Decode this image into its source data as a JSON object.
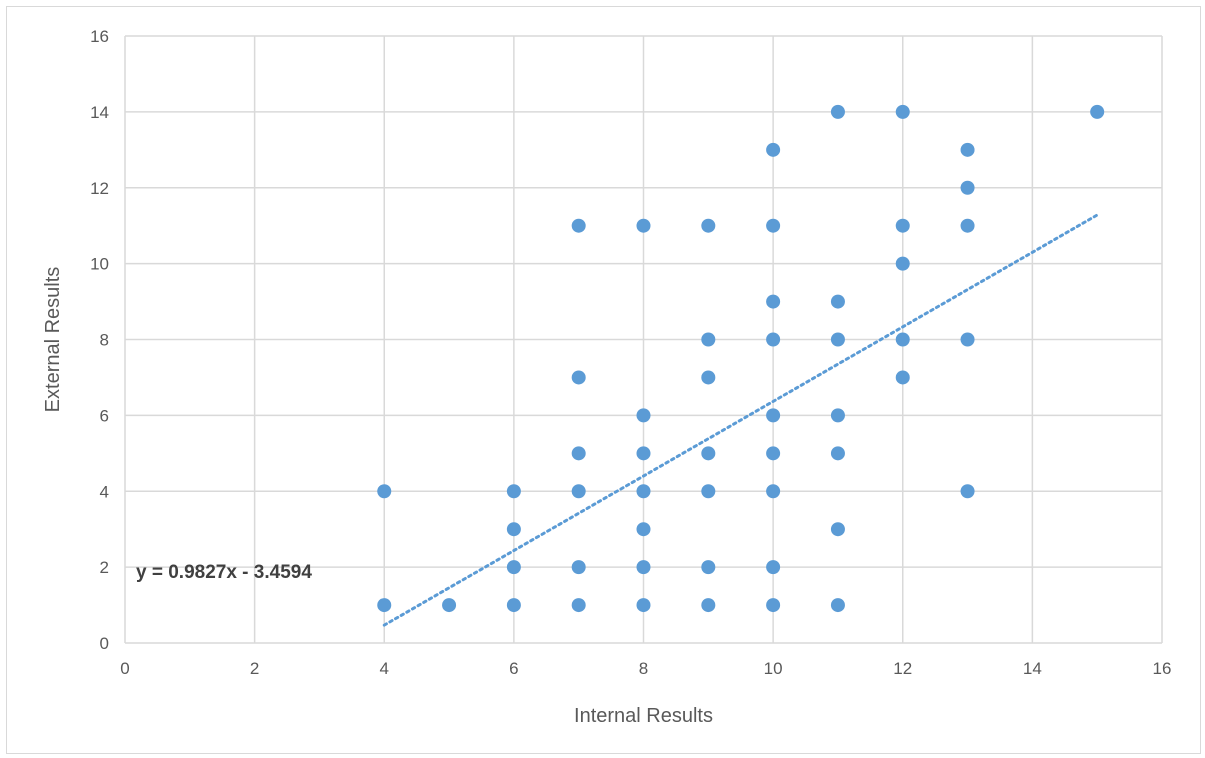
{
  "chart_data": {
    "type": "scatter",
    "title": "",
    "xlabel": "Internal Results",
    "ylabel": "External Results",
    "xlim": [
      0,
      16
    ],
    "ylim": [
      0,
      16
    ],
    "x_ticks": [
      "0",
      "2",
      "4",
      "6",
      "8",
      "10",
      "12",
      "14",
      "16"
    ],
    "y_ticks": [
      "0",
      "2",
      "4",
      "6",
      "8",
      "10",
      "12",
      "14",
      "16"
    ],
    "grid": true,
    "legend": "none",
    "series": [
      {
        "color": "#5b9bd5",
        "points": [
          [
            4,
            1
          ],
          [
            4,
            4
          ],
          [
            5,
            1
          ],
          [
            6,
            1
          ],
          [
            6,
            2
          ],
          [
            6,
            3
          ],
          [
            6,
            4
          ],
          [
            7,
            1
          ],
          [
            7,
            2
          ],
          [
            7,
            4
          ],
          [
            7,
            5
          ],
          [
            7,
            7
          ],
          [
            7,
            11
          ],
          [
            8,
            1
          ],
          [
            8,
            2
          ],
          [
            8,
            3
          ],
          [
            8,
            4
          ],
          [
            8,
            5
          ],
          [
            8,
            6
          ],
          [
            8,
            11
          ],
          [
            9,
            1
          ],
          [
            9,
            2
          ],
          [
            9,
            4
          ],
          [
            9,
            5
          ],
          [
            9,
            7
          ],
          [
            9,
            8
          ],
          [
            9,
            11
          ],
          [
            10,
            1
          ],
          [
            10,
            2
          ],
          [
            10,
            4
          ],
          [
            10,
            5
          ],
          [
            10,
            6
          ],
          [
            10,
            8
          ],
          [
            10,
            9
          ],
          [
            10,
            11
          ],
          [
            10,
            13
          ],
          [
            11,
            1
          ],
          [
            11,
            3
          ],
          [
            11,
            5
          ],
          [
            11,
            6
          ],
          [
            11,
            8
          ],
          [
            11,
            9
          ],
          [
            11,
            14
          ],
          [
            12,
            7
          ],
          [
            12,
            8
          ],
          [
            12,
            10
          ],
          [
            12,
            11
          ],
          [
            12,
            14
          ],
          [
            13,
            4
          ],
          [
            13,
            8
          ],
          [
            13,
            11
          ],
          [
            13,
            12
          ],
          [
            13,
            13
          ],
          [
            15,
            14
          ]
        ]
      }
    ],
    "trendline": {
      "type": "linear",
      "slope": 0.9827,
      "intercept": -3.4594,
      "x_range": [
        4,
        15
      ],
      "style": "dotted",
      "color": "#5b9bd5",
      "equation_label": "y = 0.9827x - 3.4594"
    }
  }
}
